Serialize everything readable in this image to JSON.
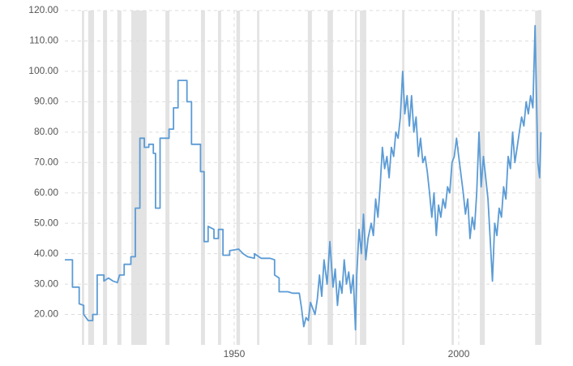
{
  "chart_data": {
    "type": "line",
    "x": [
      1912.3,
      1914,
      1914,
      1915.5,
      1915.5,
      1916.5,
      1916.5,
      1917.5,
      1918.5,
      1918.5,
      1919.5,
      1919.5,
      1921,
      1921,
      1922,
      1923,
      1924,
      1924.5,
      1925.5,
      1925.5,
      1927,
      1927,
      1928,
      1928,
      1929,
      1929,
      1930,
      1930,
      1931,
      1931,
      1932,
      1932,
      1932.5,
      1932.5,
      1933.5,
      1933.5,
      1935.5,
      1935.5,
      1936.5,
      1936.5,
      1937.5,
      1937.5,
      1939.5,
      1939.5,
      1940.5,
      1940.5,
      1942.5,
      1942.5,
      1943.3,
      1943.3,
      1944.2,
      1944.2,
      1945.5,
      1945.5,
      1946.5,
      1946.5,
      1947.5,
      1947.5,
      1949,
      1949,
      1951,
      1952,
      1953,
      1954.5,
      1954.5,
      1955.5,
      1956,
      1958,
      1959,
      1959,
      1960,
      1960,
      1962,
      1963,
      1964.5,
      1965,
      1965.5,
      1966,
      1966.5,
      1967,
      1968,
      1968.5,
      1969,
      1969.5,
      1970,
      1970.7,
      1971.3,
      1972,
      1972.5,
      1973,
      1973.5,
      1974,
      1974.5,
      1975,
      1975.5,
      1976,
      1976.5,
      1977,
      1977.3,
      1977.8,
      1978.3,
      1978.8,
      1979.3,
      1979.8,
      1980.5,
      1981,
      1981.5,
      1982,
      1982.5,
      1983,
      1983.5,
      1984,
      1984.5,
      1985,
      1985.5,
      1986,
      1986.5,
      1987,
      1987.5,
      1988,
      1988.5,
      1989,
      1989.5,
      1990,
      1990.5,
      1991,
      1991.5,
      1992,
      1992.5,
      1993,
      1993.5,
      1994,
      1994.5,
      1995,
      1995.5,
      1996,
      1996.5,
      1997,
      1997.5,
      1998,
      1998.5,
      1999,
      1999.5,
      2000,
      2000.5,
      2001,
      2001.5,
      2002,
      2002.5,
      2003,
      2003.5,
      2004,
      2004.5,
      2005,
      2005.5,
      2006,
      2006.5,
      2007,
      2007.5,
      2008,
      2008.5,
      2009,
      2009.5,
      2010,
      2010.5,
      2011,
      2011.5,
      2012,
      2012.5,
      2013,
      2013.5,
      2014,
      2014.5,
      2015,
      2015.5,
      2016,
      2016.5,
      2017,
      2017.3,
      2017.6,
      2018,
      2018.3
    ],
    "series": [
      {
        "color": "#5b9bd5",
        "values": [
          38,
          38,
          29,
          29,
          23.5,
          23,
          20,
          18,
          18,
          20,
          20,
          33,
          33,
          31,
          32,
          31,
          30.5,
          33,
          33,
          36.5,
          36.5,
          39,
          39,
          55,
          55,
          78,
          78,
          75,
          75,
          76,
          76,
          73,
          73,
          55,
          55,
          78,
          78,
          81,
          81,
          88,
          88,
          97,
          97,
          90,
          90,
          76,
          76,
          67,
          67,
          44,
          44,
          49,
          48,
          45,
          45,
          48,
          48,
          39.5,
          39.5,
          41,
          41.5,
          40,
          39,
          38.5,
          40,
          39,
          38.5,
          38.5,
          38,
          33,
          32,
          27.5,
          27.5,
          27,
          27,
          22,
          16,
          19,
          18,
          24,
          20,
          25,
          33,
          26,
          38,
          30,
          44,
          29,
          35,
          23,
          31,
          27,
          38,
          30,
          34,
          27,
          33,
          15,
          33,
          48,
          40,
          53,
          38,
          45,
          50,
          46,
          58,
          52,
          62,
          75,
          68,
          72,
          65,
          75,
          72,
          80,
          78,
          85,
          100,
          86,
          92,
          82,
          92,
          80,
          85,
          72,
          78,
          70,
          72,
          67,
          60,
          52,
          60,
          46,
          56,
          52,
          58,
          55,
          62,
          60,
          70,
          72,
          78,
          72,
          66,
          60,
          53,
          58,
          45,
          52,
          48,
          60,
          80,
          62,
          72,
          65,
          58,
          45,
          31,
          50,
          46,
          55,
          52,
          62,
          58,
          72,
          68,
          80,
          70,
          75,
          80,
          85,
          82,
          90,
          86,
          92,
          88,
          115,
          92,
          70,
          65,
          80
        ]
      }
    ],
    "shading": [
      [
        1916.1,
        1916.6
      ],
      [
        1917.5,
        1918.8
      ],
      [
        1920.8,
        1921.7
      ],
      [
        1924.0,
        1924.9
      ],
      [
        1927.1,
        1930.5
      ],
      [
        1934.7,
        1935.6
      ],
      [
        1942.6,
        1943.5
      ],
      [
        1946.4,
        1947.1
      ],
      [
        1950.5,
        1951.3
      ],
      [
        1955.1,
        1955.6
      ],
      [
        1966.4,
        1967.3
      ],
      [
        1970.8,
        1972.0
      ],
      [
        1976.9,
        1977.3
      ],
      [
        1978.0,
        1979.4
      ],
      [
        1987.4,
        1987.9
      ],
      [
        1998.4,
        1998.9
      ],
      [
        2004.7,
        2005.8
      ],
      [
        2017.0,
        2018.4
      ]
    ],
    "shading_color": "#e3e3e3",
    "xlim": [
      1912.3,
      2018.4
    ],
    "xticks": [
      1950,
      2000
    ],
    "ylim": [
      10,
      120
    ],
    "yticks": [
      {
        "value": 20,
        "label": "20.00"
      },
      {
        "value": 30,
        "label": "30.00"
      },
      {
        "value": 40,
        "label": "40.00"
      },
      {
        "value": 50,
        "label": "50.00"
      },
      {
        "value": 60,
        "label": "60.00"
      },
      {
        "value": 70,
        "label": "70.00"
      },
      {
        "value": 80,
        "label": "80.00"
      },
      {
        "value": 90,
        "label": "90.00"
      },
      {
        "value": 100,
        "label": "100.00"
      },
      {
        "value": 110,
        "label": "110.00"
      },
      {
        "value": 120,
        "label": "120.00"
      }
    ],
    "grid": true
  }
}
